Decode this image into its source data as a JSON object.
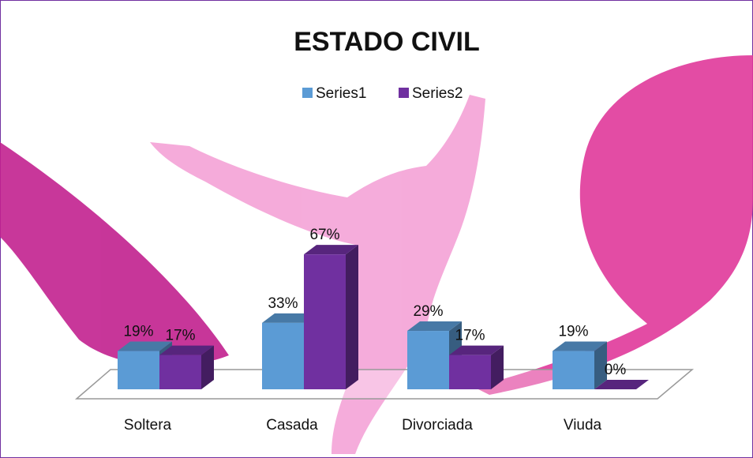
{
  "chart_data": {
    "type": "bar3d",
    "title": "ESTADO CIVIL",
    "categories": [
      "Soltera",
      "Casada",
      "Divorciada",
      "Viuda"
    ],
    "series": [
      {
        "name": "Series1",
        "color": "#5b9bd5",
        "values": [
          19,
          33,
          29,
          19
        ],
        "value_labels": [
          "19%",
          "33%",
          "29%",
          "19%"
        ]
      },
      {
        "name": "Series2",
        "color": "#7030a0",
        "values": [
          17,
          67,
          17,
          0
        ],
        "value_labels": [
          "17%",
          "67%",
          "17%",
          "0%"
        ]
      }
    ],
    "legend": "top"
  }
}
